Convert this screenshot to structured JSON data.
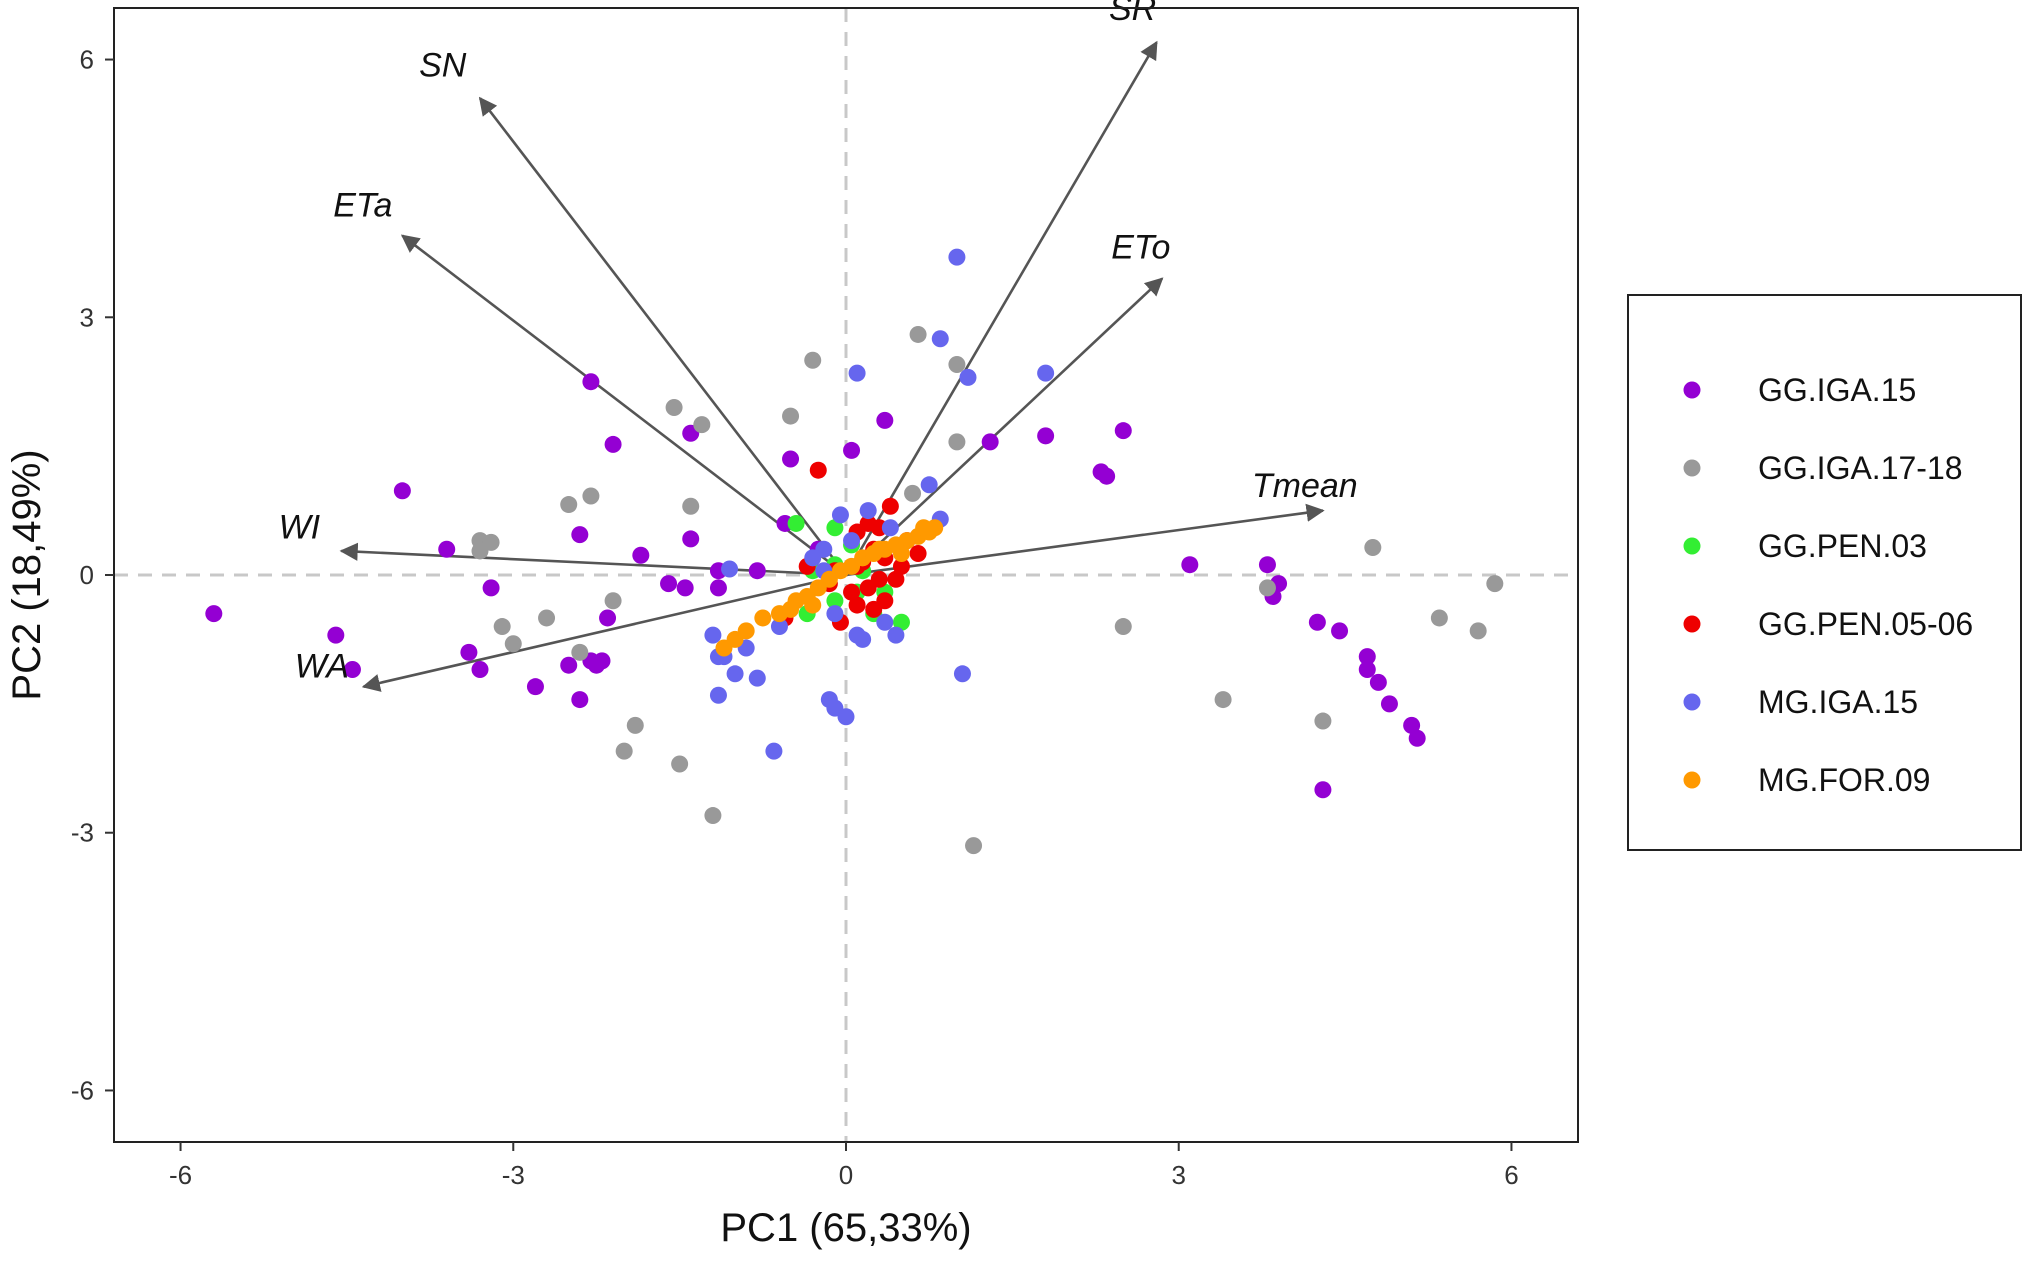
{
  "chart_data": {
    "type": "scatter",
    "subtype": "pca-biplot",
    "xlabel": "PC1 (65,33%)",
    "ylabel": "PC2 (18,49%)",
    "xlim": [
      -6.6,
      6.6
    ],
    "ylim": [
      -6.6,
      6.6
    ],
    "xticks": [
      -6,
      -3,
      0,
      3,
      6
    ],
    "yticks": [
      -6,
      -3,
      0,
      3,
      6
    ],
    "grid": false,
    "reference_lines": {
      "x": 0,
      "y": 0,
      "style": "dashed",
      "color": "#c8c8c8"
    },
    "legend_position": "right",
    "loadings": [
      {
        "label": "SR",
        "x": 2.8,
        "y": 6.2
      },
      {
        "label": "SN",
        "x": -3.3,
        "y": 5.55
      },
      {
        "label": "ETa",
        "x": -4.0,
        "y": 3.95
      },
      {
        "label": "ETo",
        "x": 2.85,
        "y": 3.45
      },
      {
        "label": "Tmean",
        "x": 4.3,
        "y": 0.75
      },
      {
        "label": "WI",
        "x": -4.55,
        "y": 0.28
      },
      {
        "label": "WA",
        "x": -4.35,
        "y": -1.3
      }
    ],
    "series": [
      {
        "name": "GG.IGA.15",
        "color": "#9400d3",
        "points": [
          [
            -5.7,
            -0.45
          ],
          [
            -4.6,
            -0.7
          ],
          [
            -4.45,
            -1.1
          ],
          [
            -4.0,
            0.98
          ],
          [
            -3.6,
            0.3
          ],
          [
            -3.4,
            -0.9
          ],
          [
            -3.3,
            -1.1
          ],
          [
            -3.2,
            -0.15
          ],
          [
            -2.8,
            -1.3
          ],
          [
            -2.5,
            -1.05
          ],
          [
            -2.4,
            -1.45
          ],
          [
            -2.4,
            0.47
          ],
          [
            -2.3,
            -1.0
          ],
          [
            -2.25,
            -1.05
          ],
          [
            -2.2,
            -1.0
          ],
          [
            -2.15,
            -0.5
          ],
          [
            -2.1,
            1.52
          ],
          [
            -1.85,
            0.23
          ],
          [
            -1.6,
            -0.1
          ],
          [
            -1.45,
            -0.15
          ],
          [
            -1.4,
            0.42
          ],
          [
            -1.4,
            1.65
          ],
          [
            -1.15,
            0.05
          ],
          [
            -1.15,
            -0.15
          ],
          [
            -0.8,
            0.05
          ],
          [
            -0.55,
            0.6
          ],
          [
            -0.5,
            1.35
          ],
          [
            -0.25,
            0.3
          ],
          [
            0.05,
            1.45
          ],
          [
            0.35,
            1.8
          ],
          [
            1.3,
            1.55
          ],
          [
            1.8,
            1.62
          ],
          [
            2.3,
            1.2
          ],
          [
            2.35,
            1.15
          ],
          [
            2.5,
            1.68
          ],
          [
            3.1,
            0.12
          ],
          [
            3.8,
            0.12
          ],
          [
            3.85,
            -0.25
          ],
          [
            3.9,
            -0.1
          ],
          [
            4.25,
            -0.55
          ],
          [
            4.3,
            -2.5
          ],
          [
            4.45,
            -0.65
          ],
          [
            4.7,
            -0.95
          ],
          [
            4.7,
            -1.1
          ],
          [
            4.8,
            -1.25
          ],
          [
            4.9,
            -1.5
          ],
          [
            5.1,
            -1.75
          ],
          [
            5.15,
            -1.9
          ],
          [
            -2.3,
            2.25
          ]
        ]
      },
      {
        "name": "GG.IGA.17-18",
        "color": "#999999",
        "points": [
          [
            -3.3,
            0.4
          ],
          [
            -3.3,
            0.28
          ],
          [
            -3.2,
            0.38
          ],
          [
            -3.1,
            -0.6
          ],
          [
            -3.0,
            -0.8
          ],
          [
            -2.7,
            -0.5
          ],
          [
            -2.5,
            0.82
          ],
          [
            -2.4,
            -0.9
          ],
          [
            -2.3,
            0.92
          ],
          [
            -2.1,
            -0.3
          ],
          [
            -2.0,
            -2.05
          ],
          [
            -1.9,
            -1.75
          ],
          [
            -1.55,
            1.95
          ],
          [
            -1.5,
            -2.2
          ],
          [
            -1.4,
            0.8
          ],
          [
            -1.3,
            1.75
          ],
          [
            -1.2,
            -2.8
          ],
          [
            -0.5,
            1.85
          ],
          [
            -0.3,
            2.5
          ],
          [
            0.65,
            2.8
          ],
          [
            0.6,
            0.95
          ],
          [
            1.0,
            2.45
          ],
          [
            1.0,
            1.55
          ],
          [
            1.15,
            -3.15
          ],
          [
            2.5,
            -0.6
          ],
          [
            3.4,
            -1.45
          ],
          [
            3.8,
            -0.15
          ],
          [
            4.3,
            -1.7
          ],
          [
            4.75,
            0.32
          ],
          [
            5.35,
            -0.5
          ],
          [
            5.7,
            -0.65
          ],
          [
            5.85,
            -0.1
          ]
        ]
      },
      {
        "name": "GG.PEN.03",
        "color": "#33ee33",
        "points": [
          [
            -0.45,
            0.6
          ],
          [
            -0.1,
            0.55
          ],
          [
            -0.3,
            0.05
          ],
          [
            -0.1,
            0.12
          ],
          [
            0.1,
            -0.2
          ],
          [
            0.15,
            0.05
          ],
          [
            0.35,
            -0.2
          ],
          [
            0.5,
            -0.55
          ],
          [
            -0.35,
            -0.45
          ],
          [
            -0.1,
            -0.3
          ],
          [
            0.05,
            0.35
          ],
          [
            0.25,
            -0.45
          ]
        ]
      },
      {
        "name": "GG.PEN.05-06",
        "color": "#ee0000",
        "points": [
          [
            -0.25,
            1.22
          ],
          [
            -0.35,
            0.1
          ],
          [
            -0.1,
            0.05
          ],
          [
            -0.05,
            -0.55
          ],
          [
            -0.55,
            -0.5
          ],
          [
            0.1,
            0.5
          ],
          [
            0.2,
            0.6
          ],
          [
            0.25,
            0.3
          ],
          [
            0.35,
            0.2
          ],
          [
            0.4,
            0.8
          ],
          [
            0.45,
            -0.05
          ],
          [
            0.35,
            -0.3
          ],
          [
            0.25,
            -0.4
          ],
          [
            0.3,
            -0.05
          ],
          [
            0.05,
            -0.2
          ],
          [
            0.1,
            -0.35
          ],
          [
            0.55,
            0.4
          ],
          [
            0.65,
            0.25
          ],
          [
            0.15,
            0.15
          ],
          [
            -0.15,
            -0.1
          ],
          [
            0.2,
            -0.15
          ],
          [
            0.5,
            0.1
          ],
          [
            0.3,
            0.55
          ],
          [
            0.1,
            0.1
          ]
        ]
      },
      {
        "name": "MG.IGA.15",
        "color": "#6666ee",
        "points": [
          [
            1.0,
            3.7
          ],
          [
            0.85,
            2.75
          ],
          [
            0.1,
            2.35
          ],
          [
            1.1,
            2.3
          ],
          [
            1.8,
            2.35
          ],
          [
            0.75,
            1.05
          ],
          [
            0.85,
            0.65
          ],
          [
            0.4,
            0.55
          ],
          [
            -0.05,
            0.7
          ],
          [
            0.05,
            0.4
          ],
          [
            -0.3,
            0.2
          ],
          [
            -0.2,
            0.05
          ],
          [
            -1.2,
            -0.7
          ],
          [
            -1.15,
            -0.95
          ],
          [
            -1.1,
            -0.95
          ],
          [
            -1.0,
            -1.15
          ],
          [
            -0.9,
            -0.85
          ],
          [
            -0.8,
            -1.2
          ],
          [
            -1.15,
            -1.4
          ],
          [
            -0.65,
            -2.05
          ],
          [
            -0.15,
            -1.45
          ],
          [
            -0.1,
            -1.55
          ],
          [
            0.0,
            -1.65
          ],
          [
            -0.1,
            -0.45
          ],
          [
            0.1,
            -0.7
          ],
          [
            0.15,
            -0.75
          ],
          [
            0.35,
            -0.55
          ],
          [
            0.45,
            -0.7
          ],
          [
            -0.6,
            -0.6
          ],
          [
            -0.2,
            0.3
          ],
          [
            1.05,
            -1.15
          ],
          [
            -1.05,
            0.07
          ],
          [
            0.2,
            0.75
          ]
        ]
      },
      {
        "name": "MG.FOR.09",
        "color": "#ff9900",
        "points": [
          [
            -1.1,
            -0.85
          ],
          [
            -1.0,
            -0.75
          ],
          [
            -0.9,
            -0.65
          ],
          [
            -0.75,
            -0.5
          ],
          [
            -0.6,
            -0.45
          ],
          [
            -0.45,
            -0.3
          ],
          [
            -0.35,
            -0.25
          ],
          [
            -0.25,
            -0.15
          ],
          [
            -0.15,
            -0.05
          ],
          [
            -0.05,
            0.05
          ],
          [
            0.05,
            0.1
          ],
          [
            0.15,
            0.2
          ],
          [
            0.25,
            0.25
          ],
          [
            0.35,
            0.3
          ],
          [
            0.45,
            0.35
          ],
          [
            0.55,
            0.4
          ],
          [
            0.65,
            0.45
          ],
          [
            0.75,
            0.5
          ],
          [
            0.8,
            0.55
          ],
          [
            0.7,
            0.55
          ],
          [
            0.5,
            0.25
          ],
          [
            -0.3,
            -0.35
          ],
          [
            -0.5,
            -0.4
          ],
          [
            0.3,
            0.3
          ]
        ]
      }
    ]
  }
}
